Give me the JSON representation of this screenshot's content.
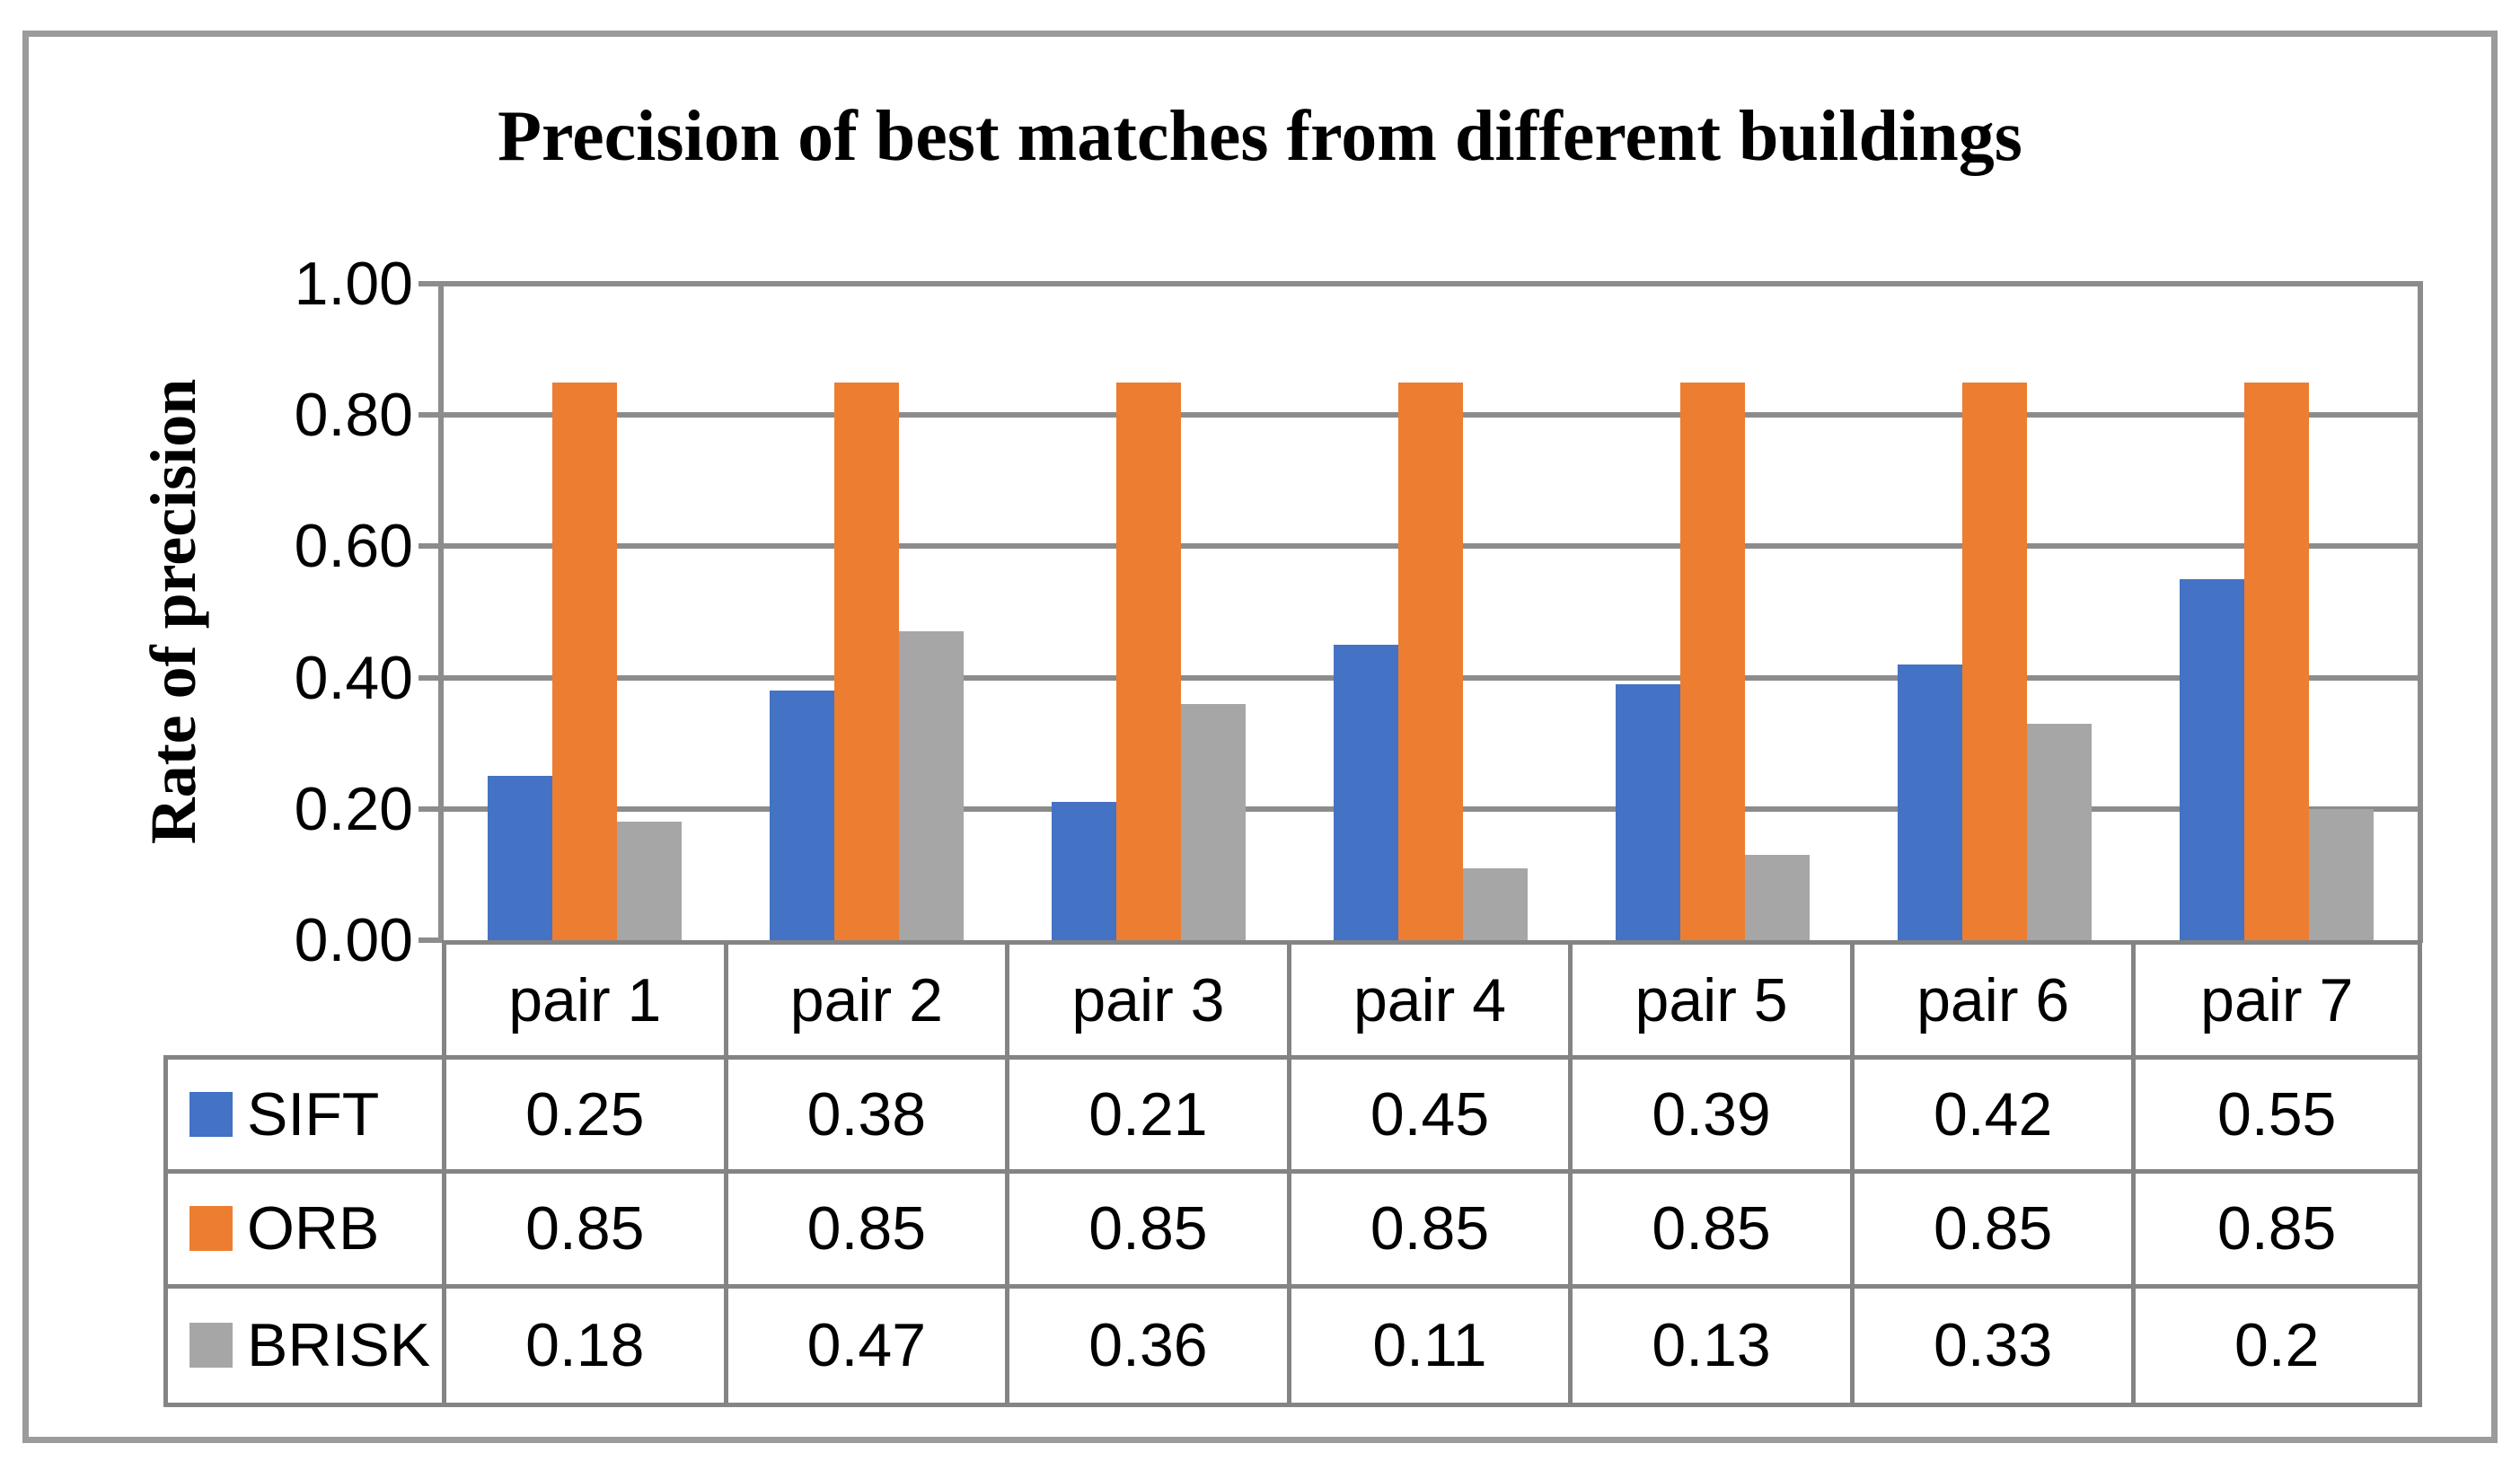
{
  "figure": {
    "title": "Precision of best matches from different buildings"
  },
  "chart_data": {
    "type": "bar",
    "title": "Precision of best matches from different buildings",
    "xlabel": "",
    "ylabel": "Rate of precision",
    "ylim": [
      0,
      1
    ],
    "y_tick_labels": [
      "1.00",
      "0.80",
      "0.60",
      "0.40",
      "0.20",
      "0.00"
    ],
    "grid": true,
    "legend_position": "table-rows-below-chart",
    "categories": [
      "pair 1",
      "pair 2",
      "pair 3",
      "pair 4",
      "pair 5",
      "pair 6",
      "pair 7"
    ],
    "series": [
      {
        "name": "SIFT",
        "color": "#4472C4",
        "values": [
          0.25,
          0.38,
          0.21,
          0.45,
          0.39,
          0.42,
          0.55
        ]
      },
      {
        "name": "ORB",
        "color": "#ED7D31",
        "values": [
          0.85,
          0.85,
          0.85,
          0.85,
          0.85,
          0.85,
          0.85
        ]
      },
      {
        "name": "BRISK",
        "color": "#A6A6A6",
        "values": [
          0.18,
          0.47,
          0.36,
          0.11,
          0.13,
          0.33,
          0.2
        ]
      }
    ]
  },
  "colors": {
    "bar_blue": "#4472C4",
    "bar_orange": "#ED7D31",
    "bar_gray": "#A6A6A6",
    "gridline": "#8C8C8C",
    "table_border": "#848484",
    "figure_border": "#9B9B9B",
    "text": "#000000",
    "background": "#FFFFFF"
  }
}
